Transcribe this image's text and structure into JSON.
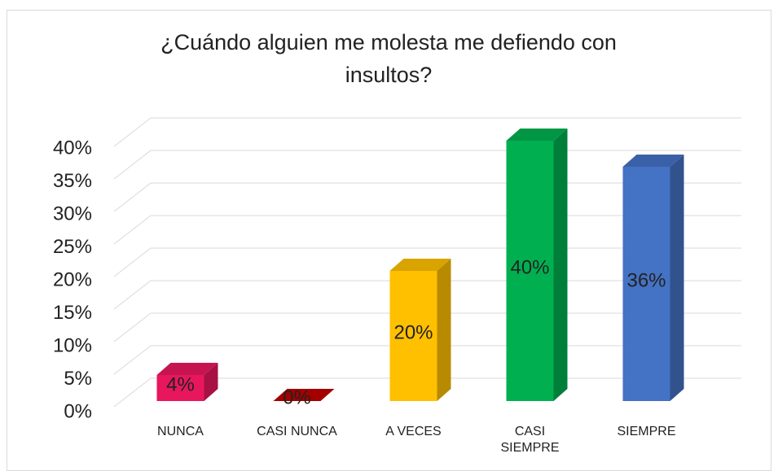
{
  "chart_data": {
    "type": "bar3d",
    "title": "¿Cuándo alguien me molesta me defiendo con insultos?",
    "categories": [
      "NUNCA",
      "CASI NUNCA",
      "A VECES",
      "CASI SIEMPRE",
      "SIEMPRE"
    ],
    "values": [
      4,
      0,
      20,
      40,
      36
    ],
    "value_labels": [
      "4%",
      "0%",
      "20%",
      "40%",
      "36%"
    ],
    "colors": [
      "#e8175d",
      "#c00000",
      "#ffc000",
      "#00b050",
      "#4472c4"
    ],
    "ylim": [
      0,
      40
    ],
    "yticks": [
      {
        "value": 0,
        "label": "0%"
      },
      {
        "value": 5,
        "label": "5%"
      },
      {
        "value": 10,
        "label": "10%"
      },
      {
        "value": 15,
        "label": "15%"
      },
      {
        "value": 20,
        "label": "20%"
      },
      {
        "value": 25,
        "label": "25%"
      },
      {
        "value": 30,
        "label": "30%"
      },
      {
        "value": 35,
        "label": "35%"
      },
      {
        "value": 40,
        "label": "40%"
      }
    ],
    "grid": true
  }
}
